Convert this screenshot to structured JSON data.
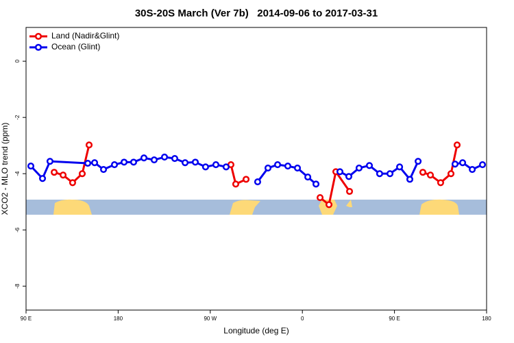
{
  "chart_data": {
    "type": "line",
    "title": "30S-20S March (Ver 7b)   2014-09-06 to 2017-03-31",
    "x_label": "Longitude (deg E)",
    "y_label": "XCO2 - MLO trend (ppm)",
    "xlim": [
      90,
      540
    ],
    "xticks": [
      {
        "value": 90,
        "label": "90 E"
      },
      180,
      {
        "value": 270,
        "label": "90 W"
      },
      {
        "value": 360,
        "label": "0"
      },
      {
        "value": 450,
        "label": "90 E"
      },
      {
        "value": 540,
        "label": "180"
      }
    ],
    "ylim": [
      -8.85,
      1.2
    ],
    "yticks": [
      0,
      -2,
      -4,
      -6,
      -8
    ],
    "legend": "top-left",
    "series": [
      {
        "name": "Land (Nadir&Glint)",
        "color": "#ee0000",
        "x": [
          117.5,
          126.2,
          135.5,
          144.9,
          151.6,
          null,
          290.2,
          294.9,
          305.0,
          null,
          377.3,
          386.0,
          392.7,
          406.1,
          null,
          477.7,
          485.1,
          495.1,
          505.2,
          511.2
        ],
        "values": [
          -3.95,
          -4.05,
          -4.32,
          -4.0,
          -2.98,
          null,
          -3.68,
          -4.37,
          -4.2,
          null,
          -4.85,
          -5.1,
          -3.93,
          -4.63,
          null,
          -3.95,
          -4.05,
          -4.32,
          -4.0,
          -2.98
        ]
      },
      {
        "name": "Ocean (Glint)",
        "color": "#0000ee",
        "x": [
          94.7,
          106.1,
          113.4,
          150.3,
          157.0,
          165.7,
          176.4,
          185.8,
          195.1,
          205.2,
          215.2,
          225.3,
          235.3,
          245.4,
          255.4,
          265.4,
          275.5,
          285.5,
          null,
          316.3,
          326.4,
          335.8,
          345.8,
          355.2,
          365.3,
          373.3,
          null,
          396.7,
          405.4,
          415.4,
          425.5,
          435.5,
          445.6,
          455.0,
          465.0,
          473.1,
          null,
          509.2,
          516.6,
          526.0,
          536.0
        ],
        "values": [
          -3.73,
          -4.17,
          -3.56,
          -3.63,
          -3.61,
          -3.85,
          -3.68,
          -3.59,
          -3.59,
          -3.44,
          -3.51,
          -3.41,
          -3.46,
          -3.61,
          -3.59,
          -3.76,
          -3.68,
          -3.76,
          null,
          -4.29,
          -3.8,
          -3.68,
          -3.73,
          -3.8,
          -4.12,
          -4.37,
          null,
          -3.93,
          -4.1,
          -3.8,
          -3.71,
          -4.0,
          -4.0,
          -3.76,
          -4.2,
          -3.56,
          null,
          -3.66,
          -3.61,
          -3.85,
          -3.68
        ]
      }
    ]
  }
}
